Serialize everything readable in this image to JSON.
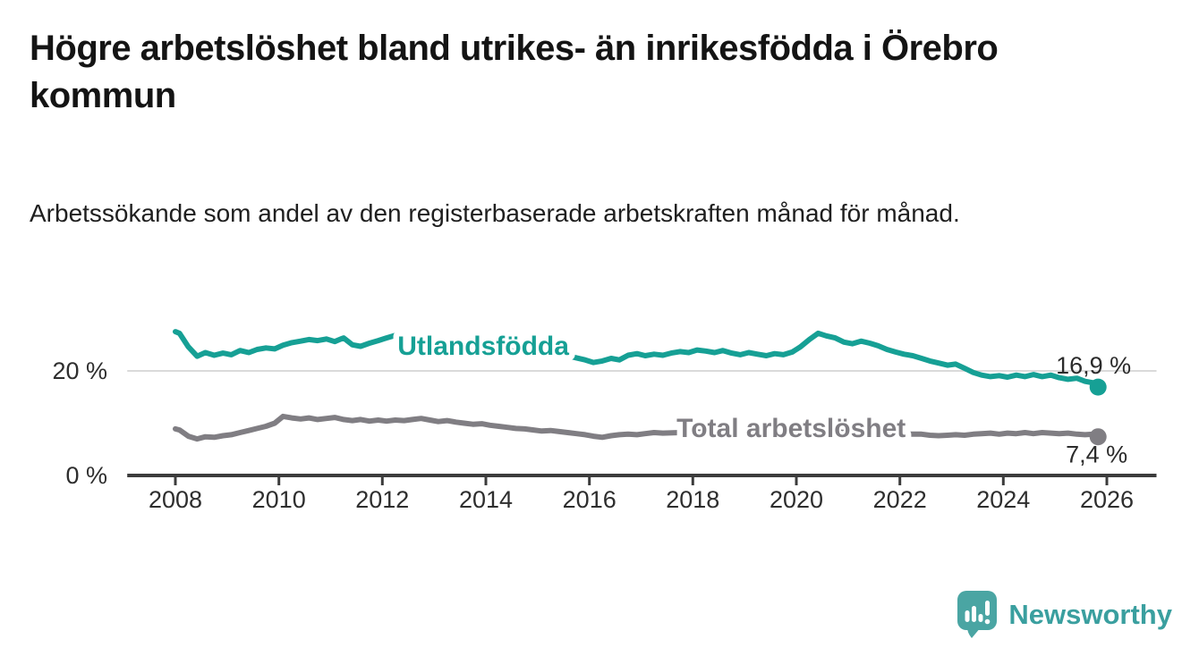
{
  "header": {
    "title": "Högre arbetslöshet bland utrikes- än inrikesfödda i Örebro kommun",
    "subtitle": "Arbetssökande som andel av den registerbaserade arbetskraften månad för månad."
  },
  "branding": {
    "logo_text": "Newsworthy",
    "logo_icon": "bar-chart-speech-bubble-icon"
  },
  "colors": {
    "foreign_born_line": "#16a095",
    "total_line": "#807e83",
    "gridline": "#dadada",
    "axis": "#3c3c3c",
    "tick_text": "#2e2e2e",
    "value_text": "#2b2b2b",
    "logo_bubble": "#4aa5a3",
    "logo_text": "#3a9f9f"
  },
  "chart_data": {
    "type": "line",
    "title": "Högre arbetslöshet bland utrikes- än inrikesfödda i Örebro kommun",
    "subtitle": "Arbetssökande som andel av den registerbaserade arbetskraften månad för månad.",
    "xlabel": "",
    "ylabel": "",
    "x_ticks": [
      "2008",
      "2010",
      "2012",
      "2014",
      "2016",
      "2018",
      "2020",
      "2022",
      "2024",
      "2026"
    ],
    "y_ticks": [
      {
        "label": "0 %",
        "value": 0
      },
      {
        "label": "20 %",
        "value": 20
      }
    ],
    "x_range": [
      2007.07,
      2026.96
    ],
    "y_range": [
      0,
      34.5
    ],
    "grid": "horizontal gridline at 20% only",
    "legend_position": "inline labels on lines",
    "series": [
      {
        "name": "Utlandsfödda",
        "color": "#16a095",
        "end_label": "16,9 %",
        "end_value": 16.9,
        "end_label_side": "above",
        "label_at": [
          2013.95,
          23.1
        ],
        "points": [
          [
            2008.0,
            27.5
          ],
          [
            2008.08,
            27.2
          ],
          [
            2008.25,
            24.6
          ],
          [
            2008.42,
            22.8
          ],
          [
            2008.58,
            23.5
          ],
          [
            2008.75,
            23.0
          ],
          [
            2008.92,
            23.4
          ],
          [
            2009.08,
            23.1
          ],
          [
            2009.25,
            23.9
          ],
          [
            2009.42,
            23.5
          ],
          [
            2009.58,
            24.1
          ],
          [
            2009.75,
            24.4
          ],
          [
            2009.92,
            24.2
          ],
          [
            2010.08,
            24.9
          ],
          [
            2010.25,
            25.4
          ],
          [
            2010.42,
            25.7
          ],
          [
            2010.58,
            26.0
          ],
          [
            2010.75,
            25.8
          ],
          [
            2010.92,
            26.1
          ],
          [
            2011.08,
            25.6
          ],
          [
            2011.25,
            26.3
          ],
          [
            2011.42,
            25.0
          ],
          [
            2011.58,
            24.7
          ],
          [
            2011.75,
            25.3
          ],
          [
            2011.92,
            25.8
          ],
          [
            2012.08,
            26.3
          ],
          [
            2012.25,
            26.8
          ],
          [
            2012.42,
            26.5
          ],
          [
            2012.75,
            26.3
          ],
          [
            2013.08,
            25.9
          ],
          [
            2013.42,
            25.3
          ],
          [
            2013.75,
            24.8
          ],
          [
            2014.08,
            24.3
          ],
          [
            2014.42,
            23.9
          ],
          [
            2014.75,
            23.5
          ],
          [
            2015.08,
            23.2
          ],
          [
            2015.42,
            23.0
          ],
          [
            2015.58,
            22.9
          ],
          [
            2015.75,
            22.5
          ],
          [
            2015.92,
            22.1
          ],
          [
            2016.08,
            21.6
          ],
          [
            2016.25,
            21.9
          ],
          [
            2016.42,
            22.4
          ],
          [
            2016.58,
            22.1
          ],
          [
            2016.75,
            23.0
          ],
          [
            2016.92,
            23.3
          ],
          [
            2017.08,
            22.9
          ],
          [
            2017.25,
            23.2
          ],
          [
            2017.42,
            23.0
          ],
          [
            2017.58,
            23.4
          ],
          [
            2017.75,
            23.7
          ],
          [
            2017.92,
            23.5
          ],
          [
            2018.08,
            24.0
          ],
          [
            2018.25,
            23.8
          ],
          [
            2018.42,
            23.5
          ],
          [
            2018.58,
            23.9
          ],
          [
            2018.75,
            23.4
          ],
          [
            2018.92,
            23.1
          ],
          [
            2019.08,
            23.5
          ],
          [
            2019.25,
            23.2
          ],
          [
            2019.42,
            22.9
          ],
          [
            2019.58,
            23.3
          ],
          [
            2019.75,
            23.1
          ],
          [
            2019.92,
            23.6
          ],
          [
            2020.08,
            24.6
          ],
          [
            2020.25,
            26.0
          ],
          [
            2020.42,
            27.2
          ],
          [
            2020.58,
            26.7
          ],
          [
            2020.75,
            26.3
          ],
          [
            2020.92,
            25.5
          ],
          [
            2021.08,
            25.2
          ],
          [
            2021.25,
            25.7
          ],
          [
            2021.42,
            25.3
          ],
          [
            2021.58,
            24.8
          ],
          [
            2021.75,
            24.1
          ],
          [
            2021.92,
            23.6
          ],
          [
            2022.08,
            23.2
          ],
          [
            2022.25,
            22.9
          ],
          [
            2022.42,
            22.4
          ],
          [
            2022.58,
            21.9
          ],
          [
            2022.75,
            21.5
          ],
          [
            2022.92,
            21.1
          ],
          [
            2023.08,
            21.3
          ],
          [
            2023.25,
            20.5
          ],
          [
            2023.42,
            19.7
          ],
          [
            2023.58,
            19.2
          ],
          [
            2023.75,
            18.9
          ],
          [
            2023.92,
            19.1
          ],
          [
            2024.08,
            18.8
          ],
          [
            2024.25,
            19.2
          ],
          [
            2024.42,
            18.9
          ],
          [
            2024.58,
            19.3
          ],
          [
            2024.75,
            18.9
          ],
          [
            2024.92,
            19.2
          ],
          [
            2025.08,
            18.7
          ],
          [
            2025.25,
            18.4
          ],
          [
            2025.42,
            18.6
          ],
          [
            2025.58,
            18.0
          ],
          [
            2025.75,
            17.7
          ],
          [
            2025.83,
            16.9
          ]
        ]
      },
      {
        "name": "Total arbetslöshet",
        "color": "#807e83",
        "end_label": "7,4 %",
        "end_value": 7.4,
        "end_label_side": "below",
        "label_at": [
          2019.9,
          7.35
        ],
        "points": [
          [
            2008.0,
            8.9
          ],
          [
            2008.08,
            8.7
          ],
          [
            2008.25,
            7.5
          ],
          [
            2008.42,
            7.0
          ],
          [
            2008.58,
            7.4
          ],
          [
            2008.75,
            7.3
          ],
          [
            2008.92,
            7.6
          ],
          [
            2009.08,
            7.8
          ],
          [
            2009.25,
            8.2
          ],
          [
            2009.42,
            8.6
          ],
          [
            2009.58,
            9.0
          ],
          [
            2009.75,
            9.4
          ],
          [
            2009.92,
            10.0
          ],
          [
            2010.08,
            11.3
          ],
          [
            2010.25,
            11.0
          ],
          [
            2010.42,
            10.8
          ],
          [
            2010.58,
            11.0
          ],
          [
            2010.75,
            10.7
          ],
          [
            2010.92,
            10.9
          ],
          [
            2011.08,
            11.1
          ],
          [
            2011.25,
            10.7
          ],
          [
            2011.42,
            10.5
          ],
          [
            2011.58,
            10.7
          ],
          [
            2011.75,
            10.4
          ],
          [
            2011.92,
            10.6
          ],
          [
            2012.08,
            10.4
          ],
          [
            2012.25,
            10.6
          ],
          [
            2012.42,
            10.5
          ],
          [
            2012.58,
            10.7
          ],
          [
            2012.75,
            10.9
          ],
          [
            2012.92,
            10.6
          ],
          [
            2013.08,
            10.3
          ],
          [
            2013.25,
            10.5
          ],
          [
            2013.42,
            10.2
          ],
          [
            2013.58,
            10.0
          ],
          [
            2013.75,
            9.8
          ],
          [
            2013.92,
            9.9
          ],
          [
            2014.08,
            9.6
          ],
          [
            2014.25,
            9.4
          ],
          [
            2014.42,
            9.2
          ],
          [
            2014.58,
            9.0
          ],
          [
            2014.75,
            8.9
          ],
          [
            2014.92,
            8.7
          ],
          [
            2015.08,
            8.5
          ],
          [
            2015.25,
            8.6
          ],
          [
            2015.42,
            8.4
          ],
          [
            2015.58,
            8.2
          ],
          [
            2015.75,
            8.0
          ],
          [
            2015.92,
            7.8
          ],
          [
            2016.08,
            7.5
          ],
          [
            2016.25,
            7.3
          ],
          [
            2016.42,
            7.6
          ],
          [
            2016.58,
            7.8
          ],
          [
            2016.75,
            7.9
          ],
          [
            2016.92,
            7.8
          ],
          [
            2017.08,
            8.0
          ],
          [
            2017.25,
            8.2
          ],
          [
            2017.42,
            8.1
          ],
          [
            2017.75,
            8.2
          ],
          [
            2018.25,
            8.3
          ],
          [
            2018.75,
            8.2
          ],
          [
            2019.25,
            8.1
          ],
          [
            2019.75,
            8.0
          ],
          [
            2020.25,
            8.4
          ],
          [
            2020.75,
            8.3
          ],
          [
            2021.25,
            8.1
          ],
          [
            2021.75,
            8.0
          ],
          [
            2022.25,
            7.9
          ],
          [
            2022.42,
            7.9
          ],
          [
            2022.58,
            7.7
          ],
          [
            2022.75,
            7.6
          ],
          [
            2022.92,
            7.7
          ],
          [
            2023.08,
            7.8
          ],
          [
            2023.25,
            7.7
          ],
          [
            2023.42,
            7.9
          ],
          [
            2023.58,
            8.0
          ],
          [
            2023.75,
            8.1
          ],
          [
            2023.92,
            7.9
          ],
          [
            2024.08,
            8.1
          ],
          [
            2024.25,
            8.0
          ],
          [
            2024.42,
            8.2
          ],
          [
            2024.58,
            8.0
          ],
          [
            2024.75,
            8.2
          ],
          [
            2024.92,
            8.1
          ],
          [
            2025.08,
            8.0
          ],
          [
            2025.25,
            8.1
          ],
          [
            2025.42,
            7.9
          ],
          [
            2025.58,
            7.8
          ],
          [
            2025.75,
            7.9
          ],
          [
            2025.83,
            7.4
          ]
        ]
      }
    ]
  }
}
